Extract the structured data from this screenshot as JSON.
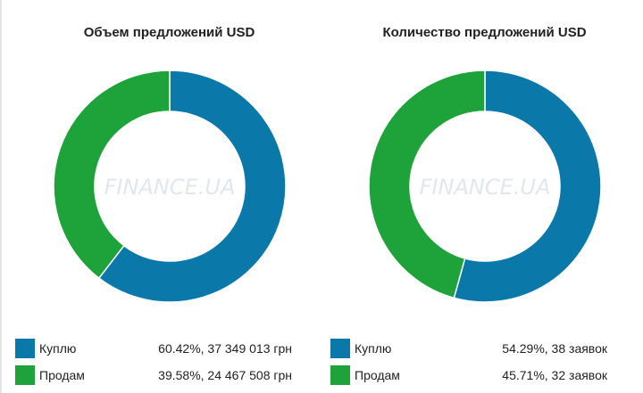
{
  "colors": {
    "buy": "#0a78a8",
    "sell": "#1ea33b",
    "watermark": "#e0e8ee"
  },
  "chart_data": [
    {
      "type": "pie",
      "title": "Объем предложений USD",
      "watermark": "FINANCE.UA",
      "categories": [
        "Куплю",
        "Продам"
      ],
      "values": [
        60.42,
        39.58
      ],
      "legend": [
        {
          "name": "Куплю",
          "value": "60.42%, 37 349 013 грн"
        },
        {
          "name": "Продам",
          "value": "39.58%, 24 467 508 грн"
        }
      ]
    },
    {
      "type": "pie",
      "title": "Количество предложений USD",
      "watermark": "FINANCE.UA",
      "categories": [
        "Куплю",
        "Продам"
      ],
      "values": [
        54.29,
        45.71
      ],
      "legend": [
        {
          "name": "Куплю",
          "value": "54.29%, 38 заявок"
        },
        {
          "name": "Продам",
          "value": "45.71%, 32 заявок"
        }
      ]
    }
  ]
}
